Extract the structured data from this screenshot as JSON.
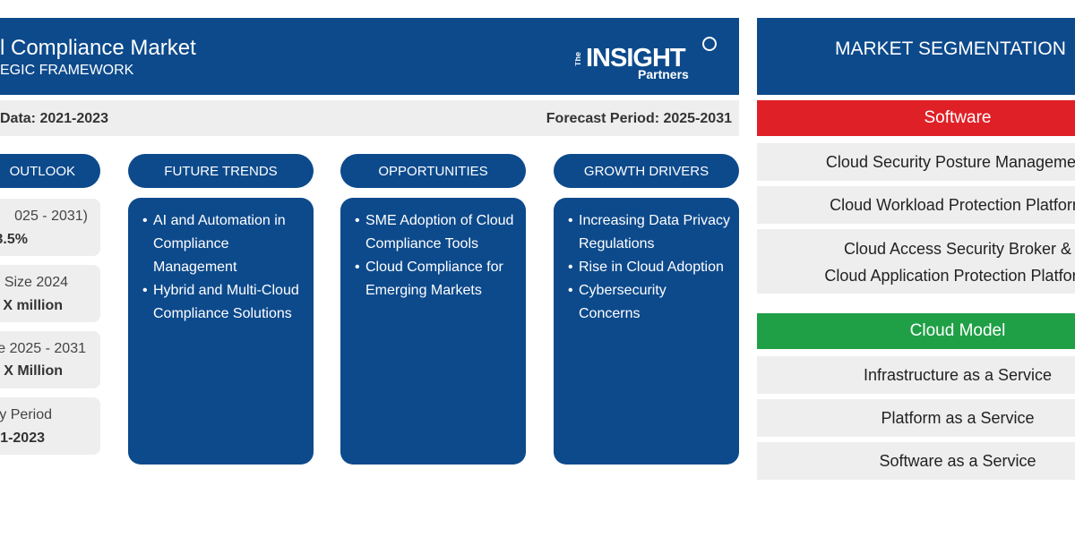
{
  "header": {
    "title": "l Compliance Market",
    "subtitle": "EGIC FRAMEWORK",
    "logo_text_top": "INSIGHT",
    "logo_text_the": "The",
    "logo_text_bottom": "Partners"
  },
  "infobar": {
    "historical": "Data: 2021-2023",
    "forecast": "Forecast Period: 2025-2031"
  },
  "columns": {
    "outlook": {
      "label": "OUTLOOK",
      "boxes": [
        {
          "line1": "025 - 2031)",
          "line2": "3.5%"
        },
        {
          "line1": "Size 2024",
          "line2": "X million"
        },
        {
          "line1": "e 2025 - 2031",
          "line2": "X Million"
        },
        {
          "line1": "y Period",
          "line2": "1-2023"
        }
      ]
    },
    "trends": {
      "label": "FUTURE TRENDS",
      "items": [
        "AI and Automation in Compliance Management",
        "Hybrid and Multi-Cloud Compliance Solutions"
      ]
    },
    "opportunities": {
      "label": "OPPORTUNITIES",
      "items": [
        "SME Adoption of Cloud Compliance Tools",
        "Cloud Compliance for Emerging Markets"
      ]
    },
    "drivers": {
      "label": "GROWTH DRIVERS",
      "items": [
        "Increasing Data Privacy Regulations",
        "Rise in Cloud Adoption",
        "Cybersecurity Concerns"
      ]
    }
  },
  "segmentation": {
    "title": "MARKET SEGMENTATION",
    "categories": [
      {
        "label": "Software",
        "color": "#e02027",
        "items": [
          "Cloud Security Posture Management",
          "Cloud Workload Protection Platform",
          "Cloud Access Security Broker & Cloud Application Protection Platform"
        ]
      },
      {
        "label": "Cloud Model",
        "color": "#1fa046",
        "items": [
          "Infrastructure as a Service",
          "Platform as a Service",
          "Software as a Service"
        ]
      }
    ]
  },
  "colors": {
    "navy": "#0d4a8c",
    "grey": "#eeeeee"
  }
}
